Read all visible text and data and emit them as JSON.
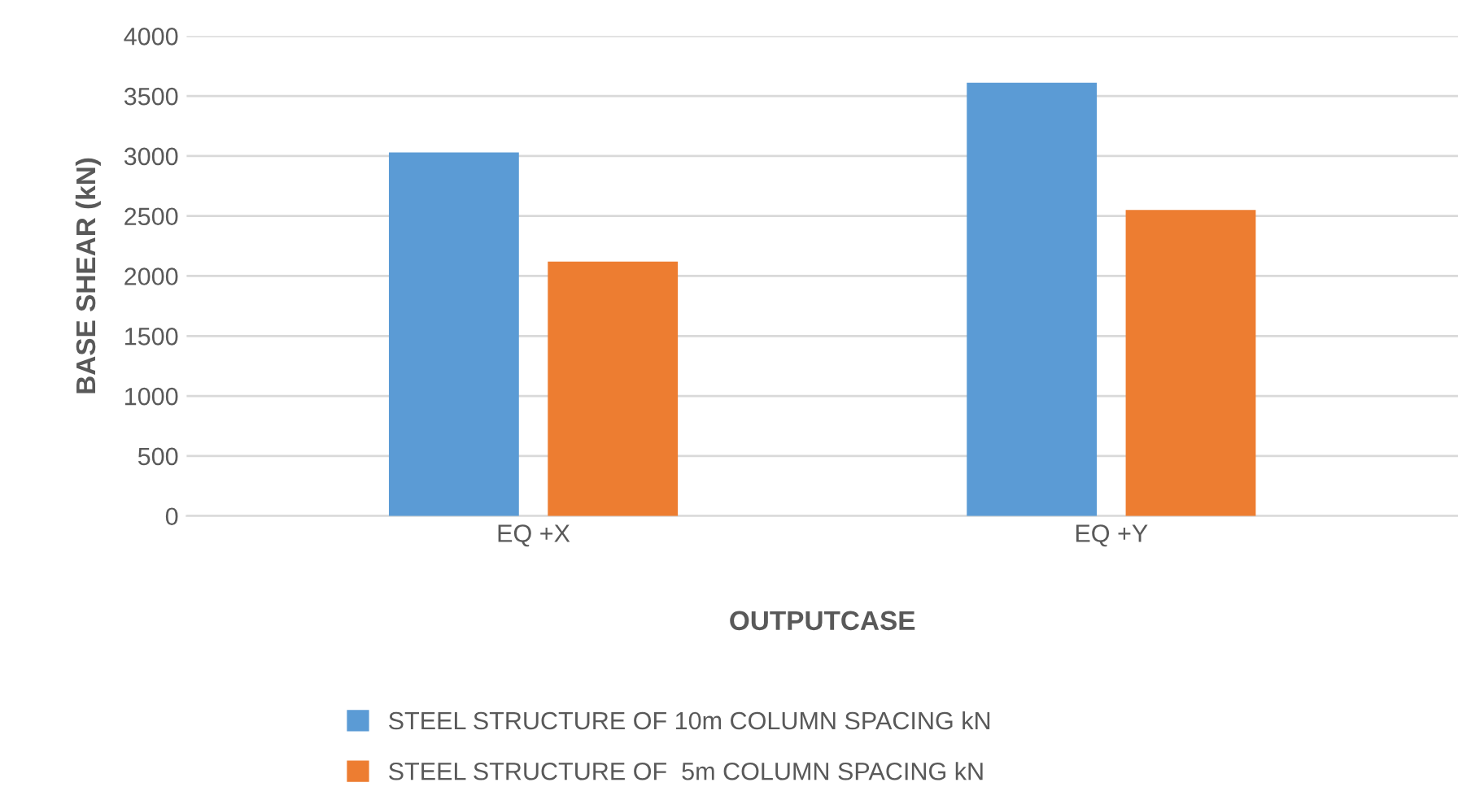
{
  "chart_data": {
    "type": "bar",
    "xlabel": "OUTPUTCASE",
    "ylabel": "BASE SHEAR (kN)",
    "categories": [
      "EQ +X",
      "EQ +Y"
    ],
    "series": [
      {
        "name": "STEEL STRUCTURE OF 10m COLUMN SPACING kN",
        "color": "#5b9bd5",
        "values": [
          3030,
          3610
        ]
      },
      {
        "name": "STEEL STRUCTURE OF  5m COLUMN SPACING kN",
        "color": "#ed7d31",
        "values": [
          2120,
          2550
        ]
      }
    ],
    "ylim": [
      0,
      4000
    ],
    "yticks": [
      0,
      500,
      1000,
      1500,
      2000,
      2500,
      3000,
      3500,
      4000
    ],
    "grid": "y",
    "legend": "bottom"
  }
}
